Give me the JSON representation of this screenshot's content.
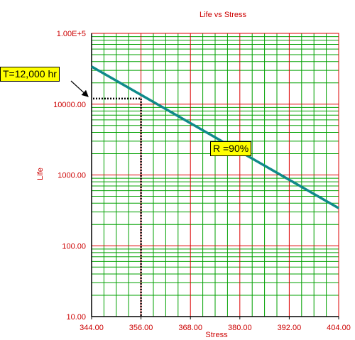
{
  "chart_data": {
    "type": "line",
    "title": "Life vs Stress",
    "xlabel": "Stress",
    "ylabel": "Life",
    "xlim": [
      344,
      404
    ],
    "ylim": [
      10,
      100000
    ],
    "yscale": "log",
    "grid": true,
    "x_ticks": [
      "344.00",
      "356.00",
      "368.00",
      "380.00",
      "392.00",
      "404.00"
    ],
    "y_ticks": [
      "10.00",
      "100.00",
      "1000.00",
      "10000.00",
      "1.00E+5"
    ],
    "series": [
      {
        "name": "R =90%",
        "x": [
          344,
          404
        ],
        "y": [
          34000,
          340
        ]
      }
    ],
    "annotations": [
      {
        "text": "T=12,000 hr",
        "x": 356,
        "y": 12000
      },
      {
        "text": "R =90%",
        "x": 370,
        "y": 2700
      }
    ]
  },
  "colors": {
    "line": "#0f8a8a",
    "major_grid": "#dd0000",
    "minor_grid": "#00a000",
    "axis_text": "#cc0000",
    "callout_bg": "#ffff00"
  }
}
